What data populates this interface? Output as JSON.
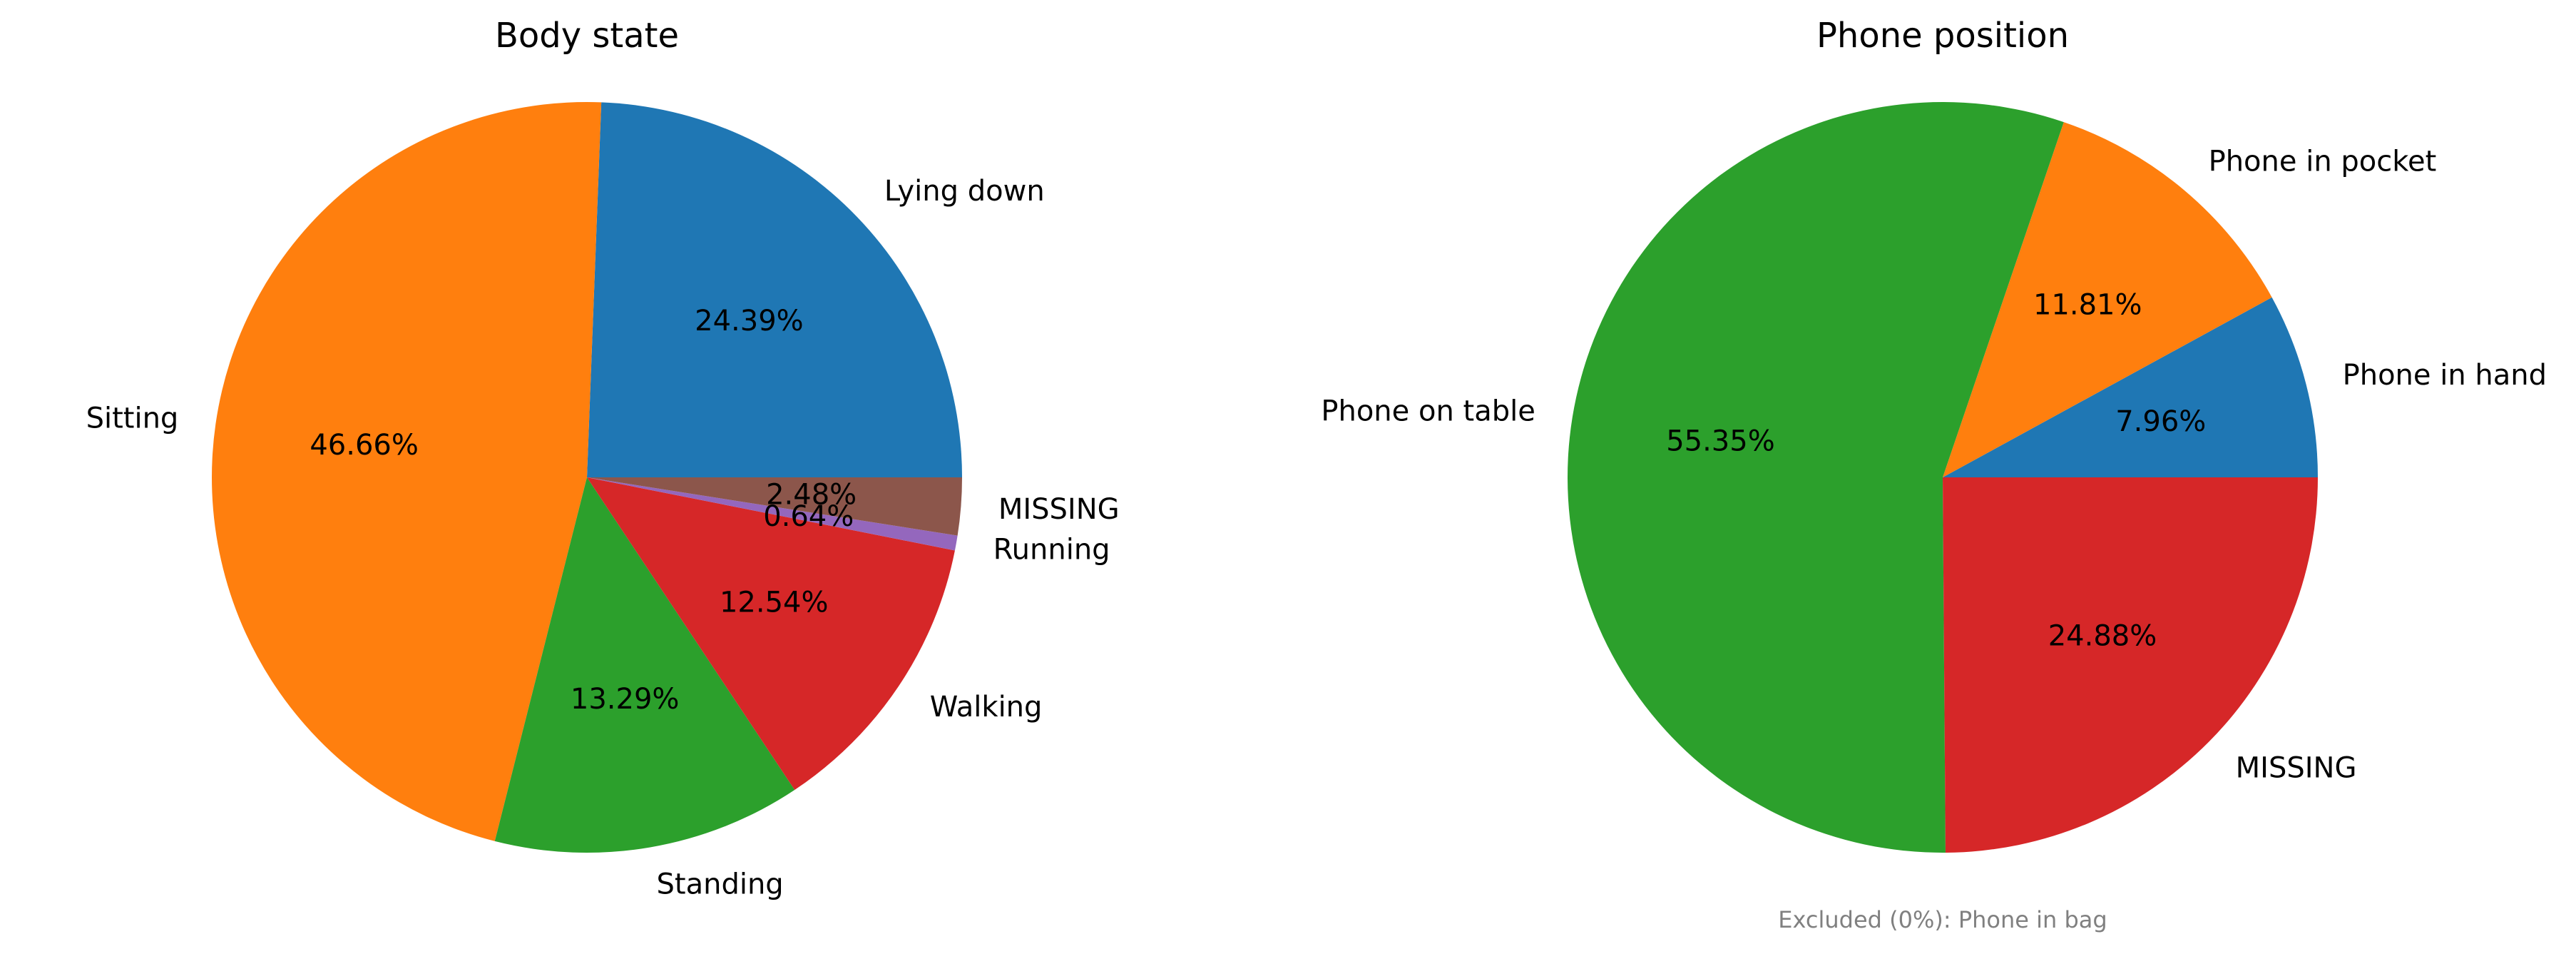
{
  "chart_data": [
    {
      "type": "pie",
      "title": "Body state",
      "slices": [
        {
          "label": "Lying down",
          "value": 24.39,
          "pct_text": "24.39%",
          "color": "#1f77b4"
        },
        {
          "label": "Sitting",
          "value": 46.66,
          "pct_text": "46.66%",
          "color": "#ff7f0e"
        },
        {
          "label": "Standing",
          "value": 13.29,
          "pct_text": "13.29%",
          "color": "#2ca02c"
        },
        {
          "label": "Walking",
          "value": 12.54,
          "pct_text": "12.54%",
          "color": "#d62728"
        },
        {
          "label": "Running",
          "value": 0.64,
          "pct_text": "0.64%",
          "color": "#9467bd"
        },
        {
          "label": "MISSING",
          "value": 2.48,
          "pct_text": "2.48%",
          "color": "#8c564b"
        }
      ],
      "start_angle_deg": 0,
      "direction": "counterclockwise"
    },
    {
      "type": "pie",
      "title": "Phone position",
      "slices": [
        {
          "label": "Phone in hand",
          "value": 7.96,
          "pct_text": "7.96%",
          "color": "#1f77b4"
        },
        {
          "label": "Phone in pocket",
          "value": 11.81,
          "pct_text": "11.81%",
          "color": "#ff7f0e"
        },
        {
          "label": "Phone on table",
          "value": 55.35,
          "pct_text": "55.35%",
          "color": "#2ca02c"
        },
        {
          "label": "MISSING",
          "value": 24.88,
          "pct_text": "24.88%",
          "color": "#d62728"
        }
      ],
      "start_angle_deg": 0,
      "direction": "counterclockwise",
      "footnote": "Excluded (0%): Phone in bag"
    }
  ]
}
